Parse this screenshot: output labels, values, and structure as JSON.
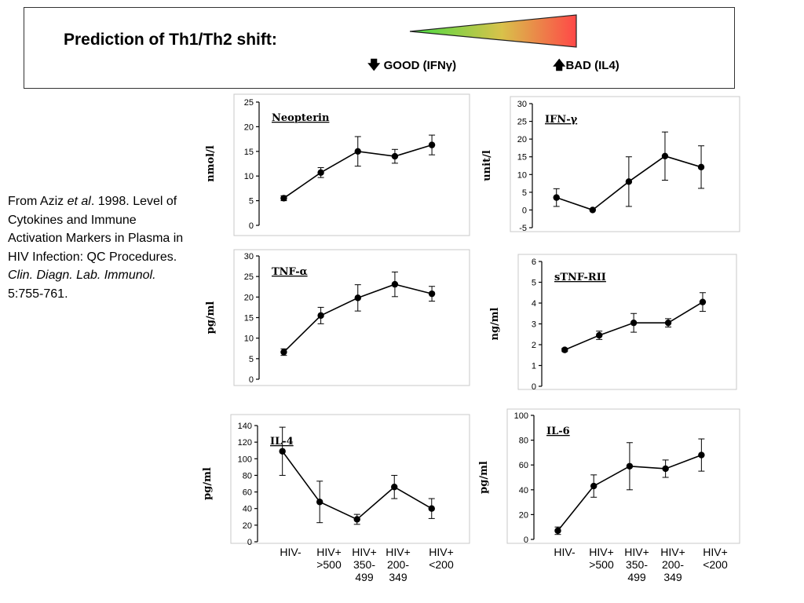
{
  "header": {
    "title": "Prediction of Th1/Th2 shift:",
    "good_label": "GOOD (IFNγ)",
    "bad_label": "BAD (IL4)",
    "gradient": {
      "start": "#44dd44",
      "mid": "#d8c24a",
      "end": "#ff4848"
    }
  },
  "citation": {
    "text_pre": "From Aziz ",
    "et_al": "et al",
    "text_mid": ".  1998. Level of Cytokines and Immune Activation Markers in Plasma in HIV Infection: QC Procedures.  ",
    "journal": "Clin. Diagn. Lab. Immunol.",
    "text_post": " 5:755-761."
  },
  "x_categories": [
    "HIV-",
    "HIV+\n>500",
    "HIV+\n350-\n499",
    "HIV+\n200-\n349",
    "HIV+\n<200"
  ],
  "chart_data": [
    {
      "type": "line",
      "title": "Neopterin",
      "ylabel": "nmol/l",
      "ylim": [
        0,
        25
      ],
      "yticks": [
        0,
        5,
        10,
        15,
        20,
        25
      ],
      "categories": [
        "HIV-",
        "HIV+ >500",
        "HIV+ 350-499",
        "HIV+ 200-349",
        "HIV+ <200"
      ],
      "values": [
        5.5,
        10.7,
        15.0,
        14.0,
        16.3
      ],
      "errors": [
        0.5,
        1.0,
        3.0,
        1.4,
        2.0
      ]
    },
    {
      "type": "line",
      "title": "IFN-γ",
      "ylabel": "unit/l",
      "ylim": [
        -5,
        30
      ],
      "yticks": [
        -5,
        0,
        5,
        10,
        15,
        20,
        25,
        30
      ],
      "categories": [
        "HIV-",
        "HIV+ >500",
        "HIV+ 350-499",
        "HIV+ 200-349",
        "HIV+ <200"
      ],
      "values": [
        3.5,
        0.0,
        8.0,
        15.2,
        12.1
      ],
      "errors": [
        2.5,
        0.0,
        7.0,
        6.8,
        6.0
      ]
    },
    {
      "type": "line",
      "title": "TNF-α",
      "ylabel": "pg/ml",
      "ylim": [
        0,
        30
      ],
      "yticks": [
        0,
        5,
        10,
        15,
        20,
        25,
        30
      ],
      "categories": [
        "HIV-",
        "HIV+ >500",
        "HIV+ 350-499",
        "HIV+ 200-349",
        "HIV+ <200"
      ],
      "values": [
        6.6,
        15.5,
        19.8,
        23.1,
        20.8
      ],
      "errors": [
        0.8,
        2.0,
        3.2,
        3.0,
        1.8
      ]
    },
    {
      "type": "line",
      "title": "sTNF-RII",
      "ylabel": "ng/ml",
      "ylim": [
        0,
        6
      ],
      "yticks": [
        0,
        1,
        2,
        3,
        4,
        5,
        6
      ],
      "categories": [
        "HIV-",
        "HIV+ >500",
        "HIV+ 350-499",
        "HIV+ 200-349",
        "HIV+ <200"
      ],
      "values": [
        1.75,
        2.45,
        3.05,
        3.05,
        4.05
      ],
      "errors": [
        0.08,
        0.2,
        0.45,
        0.2,
        0.45
      ]
    },
    {
      "type": "line",
      "title": "IL-4",
      "ylabel": "pg/ml",
      "ylim": [
        0,
        140
      ],
      "yticks": [
        0,
        20,
        40,
        60,
        80,
        100,
        120,
        140
      ],
      "categories": [
        "HIV-",
        "HIV+ >500",
        "HIV+ 350-499",
        "HIV+ 200-349",
        "HIV+ <200"
      ],
      "values": [
        109,
        48,
        27,
        66,
        40
      ],
      "errors": [
        29,
        25,
        6,
        14,
        12
      ]
    },
    {
      "type": "line",
      "title": "IL-6",
      "ylabel": "pg/ml",
      "ylim": [
        0,
        100
      ],
      "yticks": [
        0,
        20,
        40,
        60,
        80,
        100
      ],
      "categories": [
        "HIV-",
        "HIV+ >500",
        "HIV+ 350-499",
        "HIV+ 200-349",
        "HIV+ <200"
      ],
      "values": [
        7,
        43,
        59,
        57,
        68
      ],
      "errors": [
        3,
        9,
        19,
        7,
        13
      ]
    }
  ]
}
